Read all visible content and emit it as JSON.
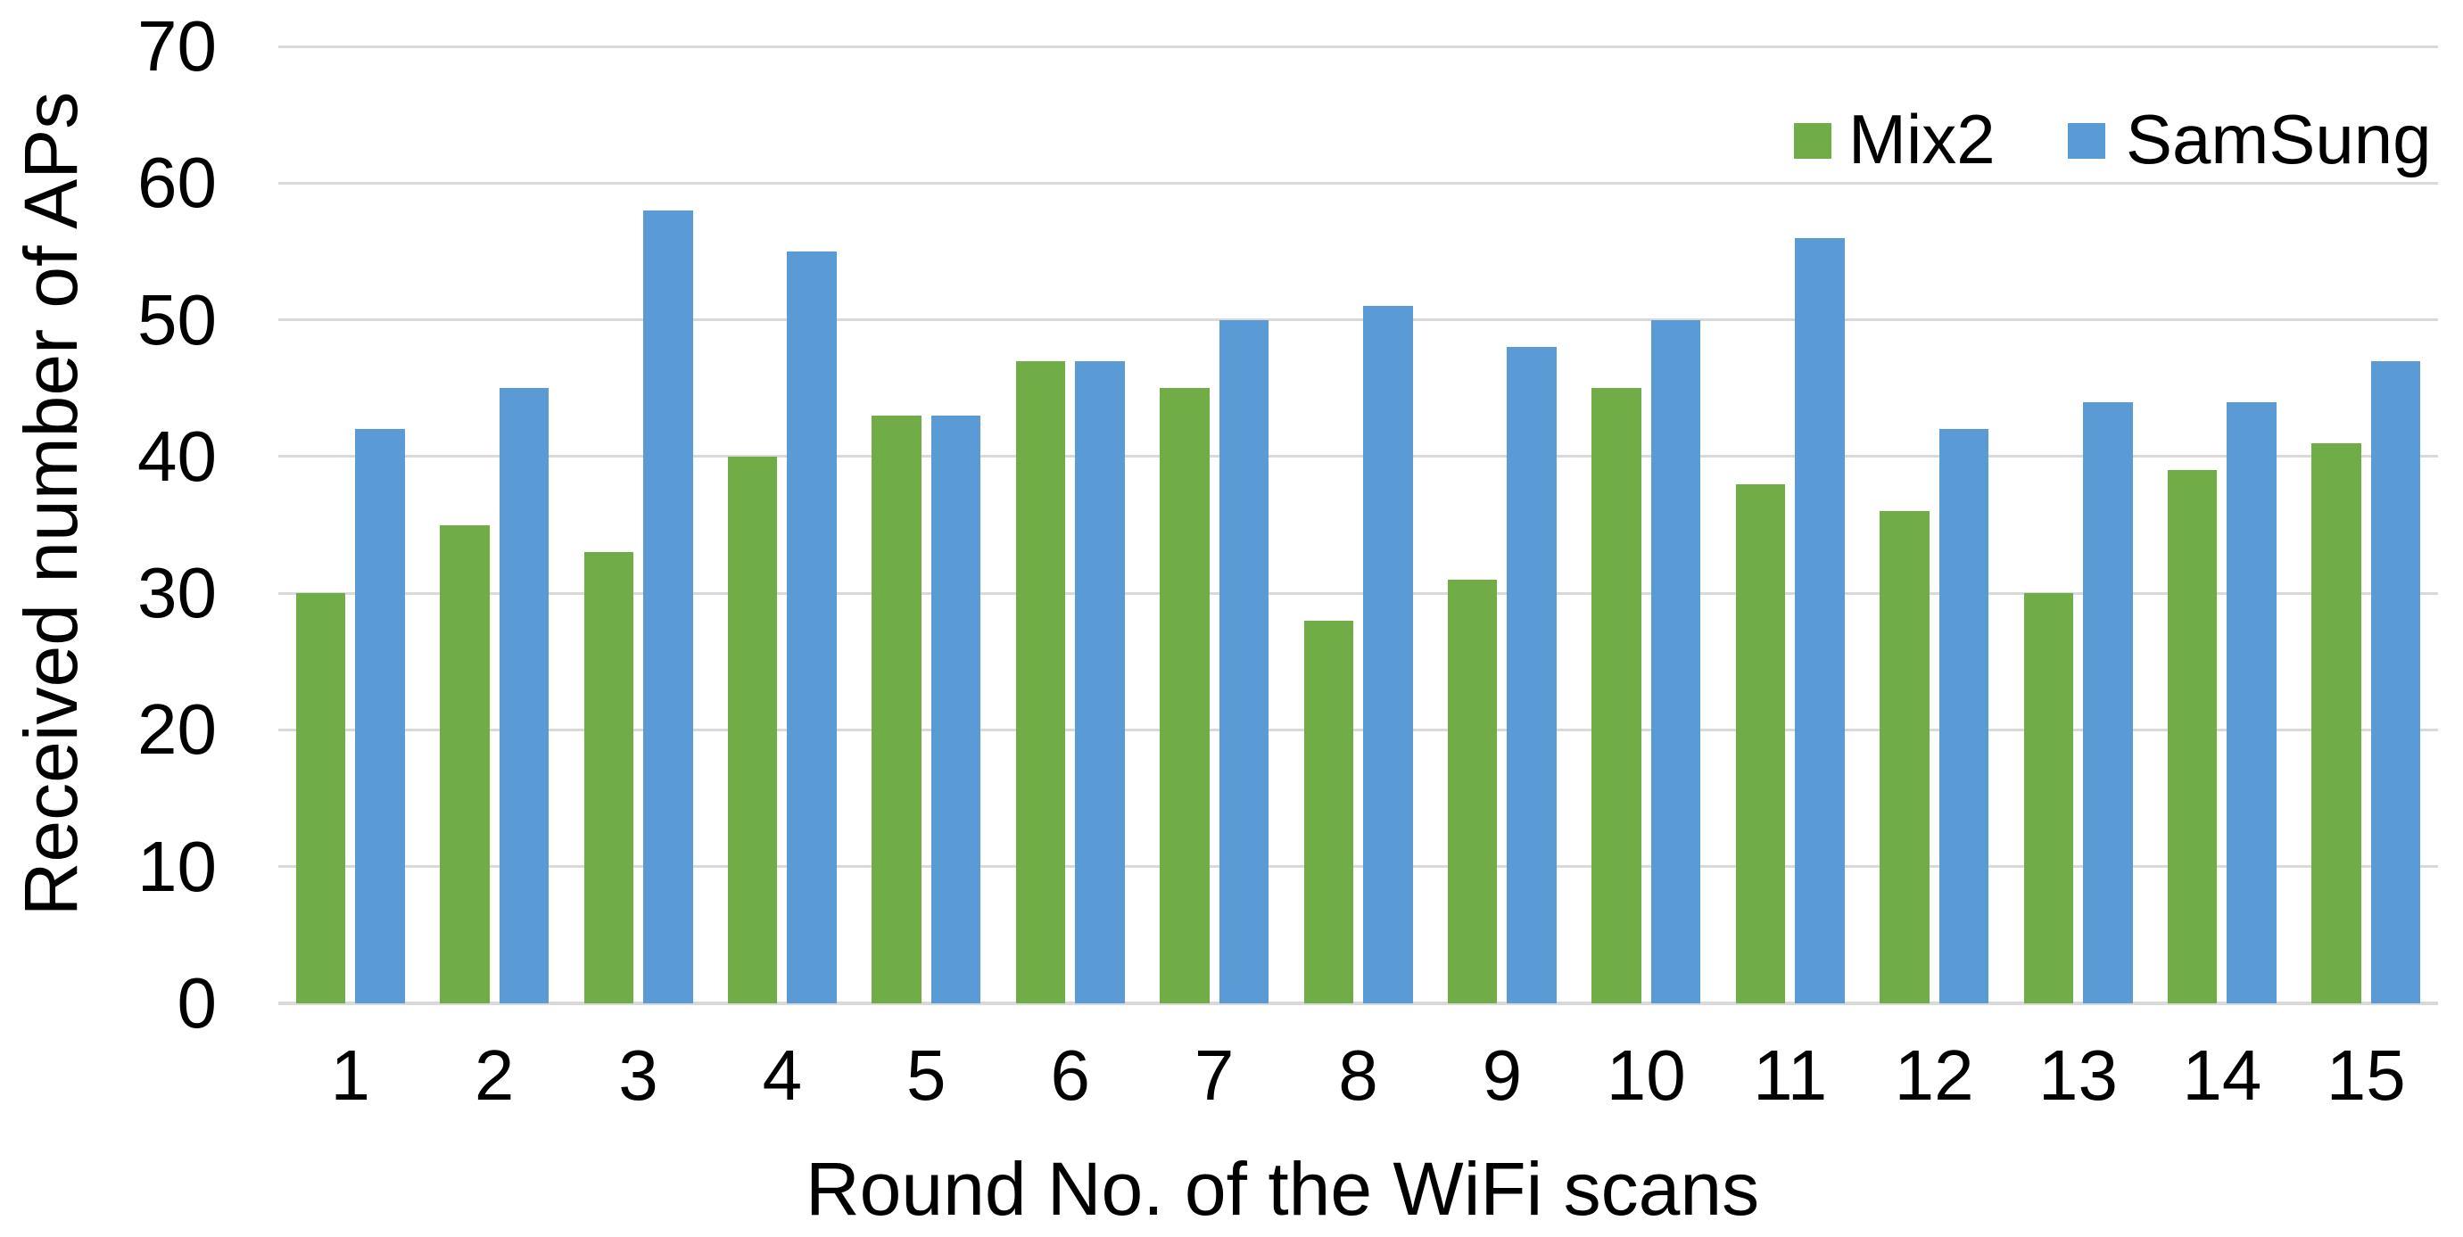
{
  "chart_data": {
    "type": "bar",
    "title": "",
    "categories": [
      "1",
      "2",
      "3",
      "4",
      "5",
      "6",
      "7",
      "8",
      "9",
      "10",
      "11",
      "12",
      "13",
      "14",
      "15"
    ],
    "series": [
      {
        "name": "Mix2",
        "color": "#70AD47",
        "values": [
          30,
          35,
          33,
          40,
          43,
          47,
          45,
          28,
          31,
          45,
          38,
          36,
          30,
          39,
          41
        ]
      },
      {
        "name": "SamSung",
        "color": "#5B9BD5",
        "values": [
          42,
          45,
          58,
          55,
          43,
          47,
          50,
          51,
          48,
          50,
          56,
          42,
          44,
          44,
          47
        ]
      }
    ],
    "xlabel": "Round No. of the WiFi scans",
    "ylabel": "Received number of APs",
    "ylim": [
      0,
      70
    ],
    "yticks": [
      0,
      10,
      20,
      30,
      40,
      50,
      60,
      70
    ],
    "grid": "horizontal",
    "legend_position": "top-right",
    "gridline_color": "#D9D9D9",
    "axis_line_color": "#D9D9D9",
    "text_color": "#000000",
    "background": "#FFFFFF"
  }
}
